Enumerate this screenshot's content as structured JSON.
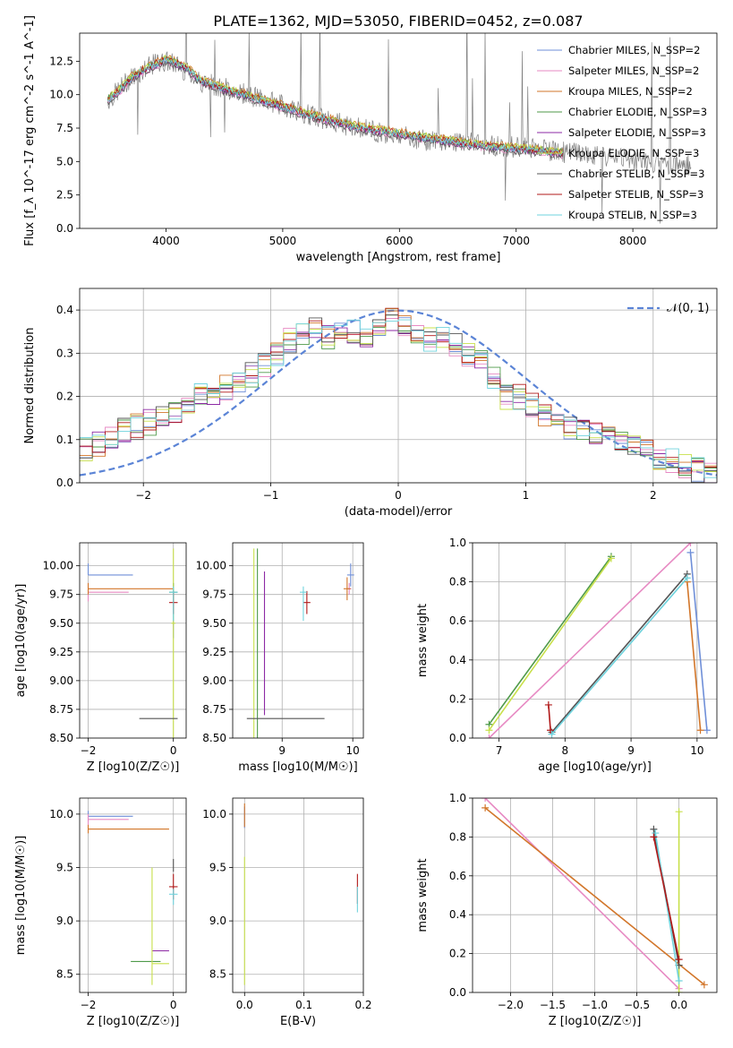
{
  "figure_title": "PLATE=1362, MJD=53050, FIBERID=0452, z=0.087",
  "legend_labels": [
    "Chabrier MILES, N_SSP=2",
    "Salpeter MILES, N_SSP=2",
    "Kroupa MILES, N_SSP=2",
    "Chabrier ELODIE, N_SSP=3",
    "Salpeter ELODIE, N_SSP=3",
    "Kroupa ELODIE, N_SSP=3",
    "Chabrier STELIB, N_SSP=3",
    "Salpeter STELIB, N_SSP=3",
    "Kroupa STELIB, N_SSP=3"
  ],
  "model_colors": [
    "#6f8fd8",
    "#e78ac3",
    "#d2762a",
    "#4f9a4a",
    "#8d2aa4",
    "#c8e04b",
    "#555555",
    "#b01818",
    "#6fd3dd"
  ],
  "chart_data": [
    {
      "id": "spectrum",
      "type": "line",
      "xlabel": "wavelength [Angstrom, rest frame]",
      "ylabel": "Flux [f_λ 10^-17 erg cm^-2 s^-1 A^-1]",
      "xlim": [
        3260,
        8720
      ],
      "ylim": [
        0,
        14.6
      ],
      "xticks": [
        4000,
        5000,
        6000,
        7000,
        8000
      ],
      "yticks": [
        0.0,
        2.5,
        5.0,
        7.5,
        10.0,
        12.5
      ],
      "grid": false,
      "legend": "top-right",
      "observed_color": "#808080",
      "observed": {
        "x": [
          3500,
          3600,
          3700,
          3800,
          3900,
          4000,
          4100,
          4200,
          4300,
          4500,
          4700,
          5000,
          5300,
          5600,
          5900,
          6200,
          6500,
          6800,
          7100,
          7400,
          7700,
          8000,
          8300,
          8500
        ],
        "y": [
          9.5,
          10.4,
          11.3,
          11.8,
          12.3,
          12.5,
          12.2,
          11.6,
          11.0,
          10.5,
          10.0,
          9.2,
          8.3,
          7.6,
          7.1,
          6.6,
          6.5,
          6.2,
          6.0,
          5.7,
          5.4,
          5.1,
          4.8,
          4.7
        ]
      },
      "model": {
        "x": [
          3500,
          3600,
          3700,
          3800,
          3900,
          4000,
          4100,
          4200,
          4300,
          4500,
          4700,
          5000,
          5300,
          5600,
          5900,
          6200,
          6500,
          6800,
          7100,
          7400
        ],
        "y": [
          9.6,
          10.3,
          11.2,
          11.8,
          12.2,
          12.6,
          12.3,
          11.8,
          11.0,
          10.4,
          9.9,
          9.1,
          8.3,
          7.6,
          7.2,
          6.8,
          6.4,
          6.1,
          5.9,
          5.6
        ]
      }
    },
    {
      "id": "residuals",
      "type": "line",
      "xlabel": "(data-model)/error",
      "ylabel": "Normed distribution",
      "xlim": [
        -2.5,
        2.5
      ],
      "ylim": [
        0,
        0.45
      ],
      "xticks": [
        -2,
        -1,
        0,
        1,
        2
      ],
      "yticks": [
        0.0,
        0.1,
        0.2,
        0.3,
        0.4
      ],
      "grid": true,
      "legend": "top-right",
      "reference_label": "𝒩(0, 1)",
      "reference_color": "#5b84d6",
      "hist_bin_centers": [
        -2.45,
        -2.35,
        -2.25,
        -2.15,
        -2.05,
        -1.95,
        -1.85,
        -1.75,
        -1.65,
        -1.55,
        -1.45,
        -1.35,
        -1.25,
        -1.15,
        -1.05,
        -0.95,
        -0.85,
        -0.75,
        -0.65,
        -0.55,
        -0.45,
        -0.35,
        -0.25,
        -0.15,
        -0.05,
        0.05,
        0.15,
        0.25,
        0.35,
        0.45,
        0.55,
        0.65,
        0.75,
        0.85,
        0.95,
        1.05,
        1.15,
        1.25,
        1.35,
        1.45,
        1.55,
        1.65,
        1.75,
        1.85,
        1.95,
        2.05,
        2.15,
        2.25,
        2.35,
        2.45
      ],
      "hist_profile": [
        0.08,
        0.09,
        0.1,
        0.12,
        0.13,
        0.14,
        0.15,
        0.16,
        0.18,
        0.2,
        0.2,
        0.22,
        0.24,
        0.25,
        0.27,
        0.3,
        0.33,
        0.35,
        0.36,
        0.34,
        0.36,
        0.35,
        0.34,
        0.36,
        0.38,
        0.37,
        0.35,
        0.33,
        0.34,
        0.32,
        0.3,
        0.28,
        0.24,
        0.2,
        0.2,
        0.18,
        0.16,
        0.14,
        0.13,
        0.12,
        0.11,
        0.1,
        0.09,
        0.08,
        0.07,
        0.06,
        0.05,
        0.04,
        0.03,
        0.02
      ]
    },
    {
      "id": "age-vs-Z",
      "type": "scatter",
      "xlabel": "Z [log10(Z/Z☉)]",
      "ylabel": "age [log10(age/yr)]",
      "xlim": [
        -2.2,
        0.3
      ],
      "ylim": [
        8.5,
        10.2
      ],
      "xticks": [
        -2,
        0
      ],
      "yticks": [
        8.5,
        8.75,
        9.0,
        9.25,
        9.5,
        9.75,
        10.0
      ],
      "grid": true,
      "points": [
        {
          "m": 0,
          "x": -2.0,
          "xerr": [
            0.0,
            1.05
          ],
          "y": 9.92,
          "yerr": [
            0.0,
            0.1
          ]
        },
        {
          "m": 0,
          "x": 0.0,
          "xerr": [
            0.0,
            0.1
          ],
          "y": 9.77,
          "yerr": [
            0.4,
            0.08
          ]
        },
        {
          "m": 1,
          "x": -2.0,
          "xerr": [
            0.0,
            0.95
          ],
          "y": 9.77,
          "yerr": [
            0.08,
            0.08
          ]
        },
        {
          "m": 2,
          "x": -2.0,
          "xerr": [
            0.0,
            2.0
          ],
          "y": 9.8,
          "yerr": [
            0.05,
            0.05
          ]
        },
        {
          "m": 3,
          "x": 0.0,
          "xerr": [
            0.1,
            0.1
          ],
          "y": 9.77,
          "yerr": [
            0.1,
            0.08
          ]
        },
        {
          "m": 5,
          "x": 0.0,
          "xerr": [
            0.05,
            0.05
          ],
          "y": 9.5,
          "yerr": [
            1.0,
            0.65
          ]
        },
        {
          "m": 6,
          "x": -0.8,
          "xerr": [
            0.0,
            0.9
          ],
          "y": 8.67,
          "yerr": [
            0.0,
            0.0
          ]
        },
        {
          "m": 7,
          "x": 0.0,
          "xerr": [
            0.1,
            0.1
          ],
          "y": 9.68,
          "yerr": [
            0.1,
            0.1
          ]
        },
        {
          "m": 8,
          "x": 0.0,
          "xerr": [
            0.1,
            0.1
          ],
          "y": 9.77,
          "yerr": [
            0.25,
            0.05
          ]
        }
      ]
    },
    {
      "id": "age-vs-mass",
      "type": "scatter",
      "xlabel": "mass [log10(M/M☉)]",
      "ylabel": "",
      "xlim": [
        8.3,
        10.15
      ],
      "ylim": [
        8.5,
        10.2
      ],
      "xticks": [
        9,
        10
      ],
      "yticks": [
        8.5,
        8.75,
        9.0,
        9.25,
        9.5,
        9.75,
        10.0
      ],
      "grid": true,
      "points": [
        {
          "m": 0,
          "x": 9.97,
          "xerr": [
            0.05,
            0.05
          ],
          "y": 9.92,
          "yerr": [
            0.1,
            0.1
          ]
        },
        {
          "m": 1,
          "x": 9.95,
          "xerr": [
            0.03,
            0.03
          ],
          "y": 9.8,
          "yerr": [
            0.05,
            0.05
          ]
        },
        {
          "m": 2,
          "x": 9.92,
          "xerr": [
            0.05,
            0.05
          ],
          "y": 9.8,
          "yerr": [
            0.1,
            0.1
          ]
        },
        {
          "m": 3,
          "x": 8.65,
          "xerr": [
            0.0,
            0.0
          ],
          "y": 9.5,
          "yerr": [
            1.0,
            0.65
          ]
        },
        {
          "m": 4,
          "x": 8.75,
          "xerr": [
            0.0,
            0.0
          ],
          "y": 9.3,
          "yerr": [
            0.6,
            0.65
          ]
        },
        {
          "m": 5,
          "x": 8.6,
          "xerr": [
            0.0,
            0.0
          ],
          "y": 9.5,
          "yerr": [
            1.0,
            0.65
          ]
        },
        {
          "m": 6,
          "x": 8.5,
          "xerr": [
            0.0,
            1.1
          ],
          "y": 8.67,
          "yerr": [
            0.0,
            0.0
          ]
        },
        {
          "m": 7,
          "x": 9.35,
          "xerr": [
            0.05,
            0.05
          ],
          "y": 9.68,
          "yerr": [
            0.1,
            0.1
          ]
        },
        {
          "m": 8,
          "x": 9.3,
          "xerr": [
            0.05,
            0.05
          ],
          "y": 9.77,
          "yerr": [
            0.25,
            0.05
          ]
        }
      ]
    },
    {
      "id": "weight-vs-age",
      "type": "line",
      "xlabel": "age [log10(age/yr)]",
      "ylabel": "mass weight",
      "xlim": [
        6.6,
        10.3
      ],
      "ylim": [
        0,
        1.0
      ],
      "xticks": [
        7,
        8,
        9,
        10
      ],
      "yticks": [
        0.0,
        0.2,
        0.4,
        0.6,
        0.8,
        1.0
      ],
      "grid": true,
      "lines": [
        {
          "m": 0,
          "x": [
            9.9,
            10.15
          ],
          "y": [
            0.95,
            0.04
          ]
        },
        {
          "m": 1,
          "x": [
            6.85,
            9.9
          ],
          "y": [
            0.0,
            1.0
          ]
        },
        {
          "m": 2,
          "x": [
            9.85,
            10.05
          ],
          "y": [
            0.8,
            0.04
          ]
        },
        {
          "m": 3,
          "x": [
            6.85,
            8.7
          ],
          "y": [
            0.07,
            0.93
          ]
        },
        {
          "m": 5,
          "x": [
            6.85,
            8.7
          ],
          "y": [
            0.04,
            0.92
          ]
        },
        {
          "m": 6,
          "x": [
            7.8,
            9.85
          ],
          "y": [
            0.03,
            0.84
          ]
        },
        {
          "m": 7,
          "x": [
            7.75,
            7.78
          ],
          "y": [
            0.17,
            0.04
          ]
        },
        {
          "m": 8,
          "x": [
            7.8,
            9.85
          ],
          "y": [
            0.02,
            0.82
          ]
        }
      ]
    },
    {
      "id": "mass-vs-Z",
      "type": "scatter",
      "xlabel": "Z [log10(Z/Z☉)]",
      "ylabel": "mass [log10(M/M☉)]",
      "xlim": [
        -2.2,
        0.3
      ],
      "ylim": [
        8.33,
        10.15
      ],
      "xticks": [
        -2,
        0
      ],
      "yticks": [
        8.5,
        9.0,
        9.5,
        10.0
      ],
      "grid": true,
      "points": [
        {
          "m": 0,
          "x": -2.0,
          "xerr": [
            0.0,
            1.05
          ],
          "y": 9.98,
          "yerr": [
            0.05,
            0.05
          ]
        },
        {
          "m": 1,
          "x": -2.0,
          "xerr": [
            0.0,
            0.95
          ],
          "y": 9.95,
          "yerr": [
            0.05,
            0.05
          ]
        },
        {
          "m": 2,
          "x": -2.0,
          "xerr": [
            0.0,
            1.9
          ],
          "y": 9.86,
          "yerr": [
            0.04,
            0.04
          ]
        },
        {
          "m": 3,
          "x": -0.5,
          "xerr": [
            0.5,
            0.2
          ],
          "y": 8.62,
          "yerr": [
            0.0,
            0.0
          ]
        },
        {
          "m": 4,
          "x": -0.2,
          "xerr": [
            0.3,
            0.1
          ],
          "y": 8.72,
          "yerr": [
            0.0,
            0.0
          ]
        },
        {
          "m": 5,
          "x": -0.5,
          "xerr": [
            0.0,
            0.4
          ],
          "y": 8.6,
          "yerr": [
            0.2,
            0.9
          ]
        },
        {
          "m": 6,
          "x": 0.0,
          "xerr": [
            0.0,
            0.0
          ],
          "y": 9.52,
          "yerr": [
            0.06,
            0.06
          ]
        },
        {
          "m": 7,
          "x": 0.0,
          "xerr": [
            0.1,
            0.1
          ],
          "y": 9.32,
          "yerr": [
            0.12,
            0.12
          ]
        },
        {
          "m": 8,
          "x": 0.0,
          "xerr": [
            0.1,
            0.1
          ],
          "y": 9.25,
          "yerr": [
            0.1,
            0.05
          ]
        }
      ]
    },
    {
      "id": "mass-vs-EBV",
      "type": "scatter",
      "xlabel": "E(B-V)",
      "ylabel": "",
      "xlim": [
        -0.02,
        0.2
      ],
      "ylim": [
        8.33,
        10.15
      ],
      "xticks": [
        0.0,
        0.1,
        0.2
      ],
      "yticks": [
        8.5,
        9.0,
        9.5,
        10.0
      ],
      "grid": true,
      "points": [
        {
          "m": 0,
          "x": 0.0,
          "xerr": [
            0.0,
            0.0
          ],
          "y": 9.97,
          "yerr": [
            0.1,
            0.1
          ]
        },
        {
          "m": 2,
          "x": 0.0,
          "xerr": [
            0.0,
            0.0
          ],
          "y": 10.0,
          "yerr": [
            0.12,
            0.1
          ]
        },
        {
          "m": 5,
          "x": 0.0,
          "xerr": [
            0.0,
            0.0
          ],
          "y": 9.0,
          "yerr": [
            0.6,
            0.6
          ]
        },
        {
          "m": 7,
          "x": 0.19,
          "xerr": [
            0.0,
            0.0
          ],
          "y": 9.3,
          "yerr": [
            0.14,
            0.14
          ]
        },
        {
          "m": 8,
          "x": 0.19,
          "xerr": [
            0.0,
            0.0
          ],
          "y": 9.2,
          "yerr": [
            0.12,
            0.12
          ]
        }
      ]
    },
    {
      "id": "weight-vs-Z",
      "type": "line",
      "xlabel": "Z [log10(Z/Z☉)]",
      "ylabel": "mass weight",
      "xlim": [
        -2.45,
        0.45
      ],
      "ylim": [
        0,
        1.0
      ],
      "xticks": [
        -2.0,
        -1.5,
        -1.0,
        -0.5,
        0.0
      ],
      "yticks": [
        0.0,
        0.2,
        0.4,
        0.6,
        0.8,
        1.0
      ],
      "grid": true,
      "lines": [
        {
          "m": 1,
          "x": [
            -2.3,
            0.0
          ],
          "y": [
            1.0,
            0.02
          ]
        },
        {
          "m": 2,
          "x": [
            -2.3,
            0.3
          ],
          "y": [
            0.95,
            0.04
          ]
        },
        {
          "m": 5,
          "x": [
            0.0,
            0.0
          ],
          "y": [
            0.0,
            0.93
          ]
        },
        {
          "m": 6,
          "x": [
            -0.3,
            0.0
          ],
          "y": [
            0.84,
            0.14
          ]
        },
        {
          "m": 8,
          "x": [
            -0.28,
            0.0
          ],
          "y": [
            0.82,
            0.06
          ]
        },
        {
          "m": 7,
          "x": [
            -0.3,
            0.0
          ],
          "y": [
            0.8,
            0.17
          ]
        }
      ]
    }
  ]
}
